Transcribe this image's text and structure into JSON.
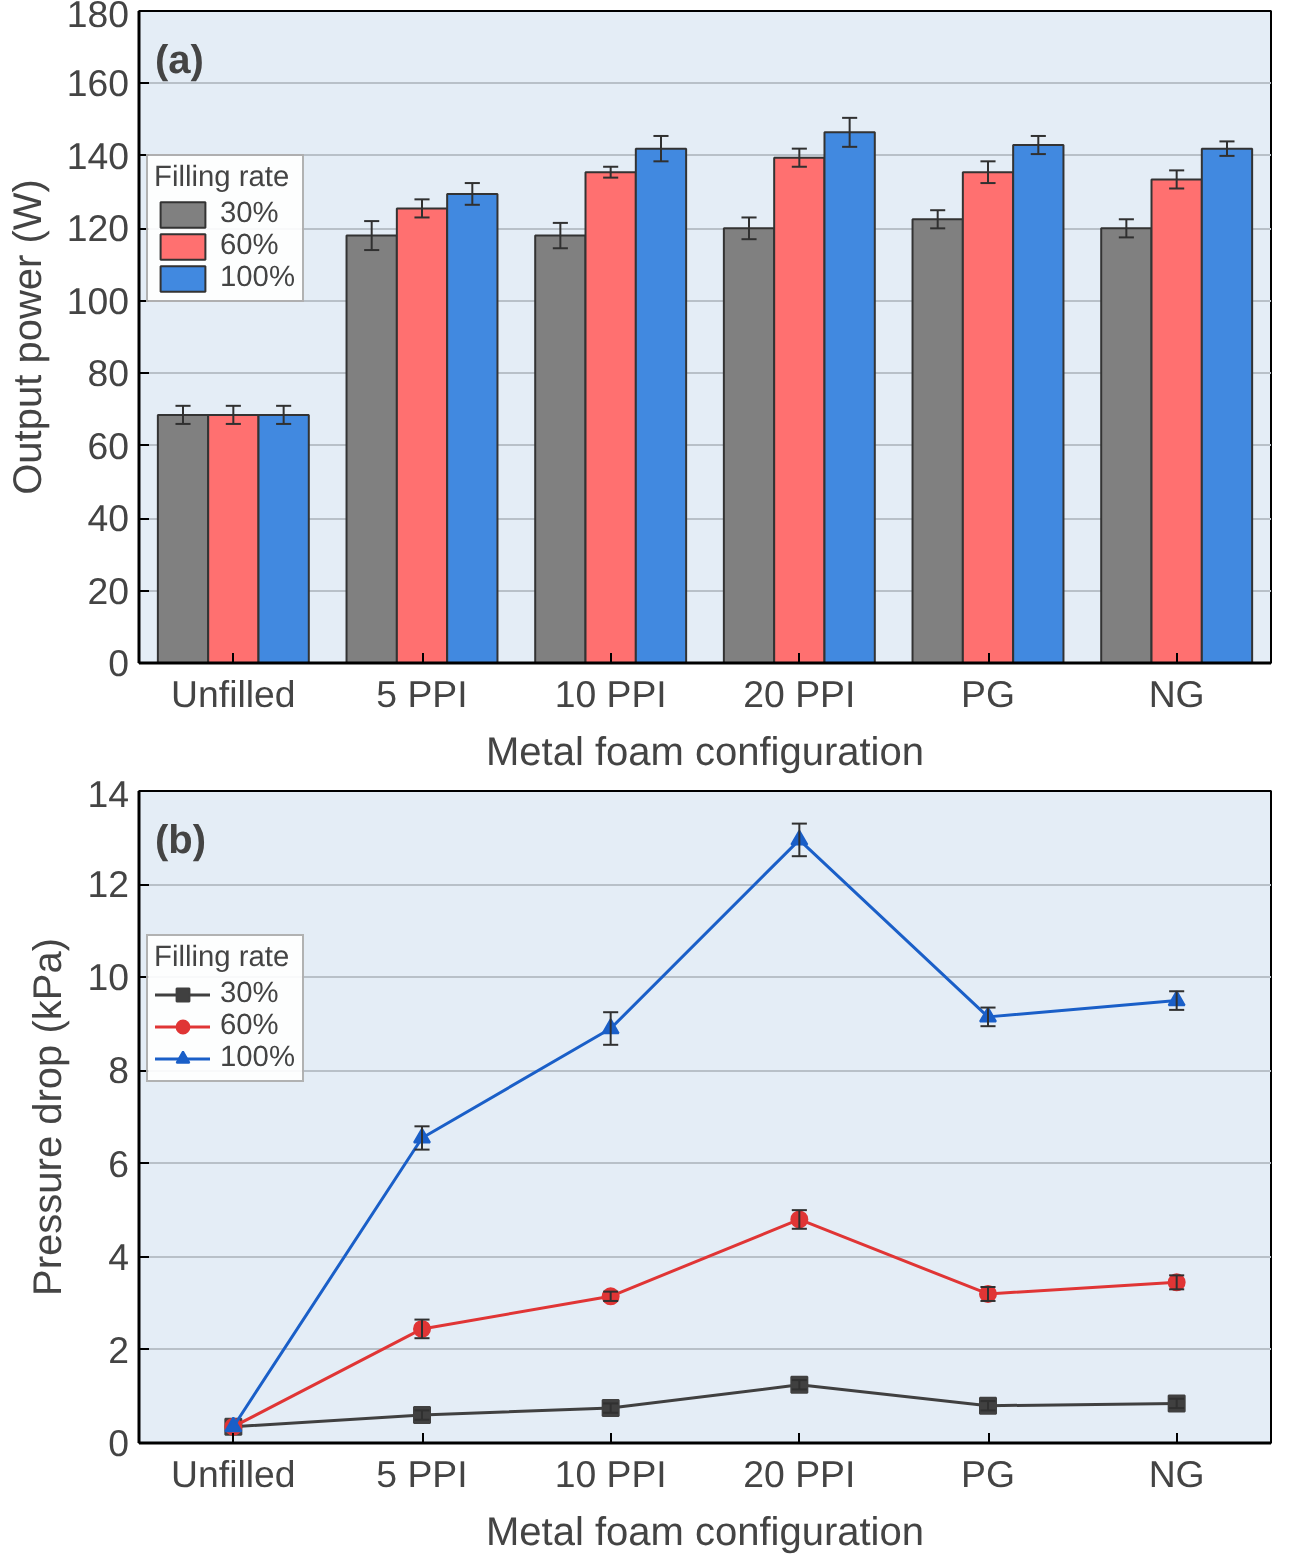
{
  "chart_data": [
    {
      "type": "bar",
      "annotations": [
        "(a)"
      ],
      "xlabel": "Metal foam configuration",
      "ylabel": "Output power (W)",
      "legend_title": "Filling rate",
      "categories": [
        "Unfilled",
        "5 PPI",
        "10 PPI",
        "20 PPI",
        "PG",
        "NG"
      ],
      "series": [
        {
          "name": "30%",
          "color": "#808080",
          "values": [
            68.5,
            118,
            118,
            120,
            122.5,
            120
          ],
          "errors": [
            2.5,
            4,
            3.5,
            3,
            2.5,
            2.5
          ]
        },
        {
          "name": "60%",
          "color": "#ff7070",
          "values": [
            68.5,
            125.5,
            135.5,
            139.5,
            135.5,
            133.5
          ],
          "errors": [
            2.5,
            2.5,
            1.5,
            2.5,
            3,
            2.5
          ]
        },
        {
          "name": "100%",
          "color": "#4189e0",
          "values": [
            68.5,
            129.5,
            142,
            146.5,
            143,
            142
          ],
          "errors": [
            2.5,
            3,
            3.5,
            4,
            2.5,
            2
          ]
        }
      ],
      "ylim": [
        0,
        180
      ],
      "yticks": [
        0,
        20,
        40,
        60,
        80,
        100,
        120,
        140,
        160,
        180
      ],
      "grid": "y",
      "legend": "top left"
    },
    {
      "type": "line",
      "annotations": [
        "(b)"
      ],
      "xlabel": "Metal foam configuration",
      "ylabel": "Pressure drop (kPa)",
      "legend_title": "Filling rate",
      "categories": [
        "Unfilled",
        "5 PPI",
        "10 PPI",
        "20 PPI",
        "PG",
        "NG"
      ],
      "series": [
        {
          "name": "30%",
          "color": "#404040",
          "marker": "square",
          "values": [
            0.35,
            0.6,
            0.75,
            1.25,
            0.8,
            0.85
          ],
          "errors": [
            null,
            0.1,
            0.1,
            0.1,
            0.1,
            0.1
          ]
        },
        {
          "name": "60%",
          "color": "#e03535",
          "marker": "circle",
          "values": [
            0.35,
            2.45,
            3.15,
            4.8,
            3.2,
            3.45
          ],
          "errors": [
            null,
            0.2,
            0.1,
            0.2,
            0.15,
            0.15
          ]
        },
        {
          "name": "100%",
          "color": "#1a5fc8",
          "marker": "triangle",
          "values": [
            0.35,
            6.55,
            8.9,
            12.95,
            9.15,
            9.5
          ],
          "errors": [
            null,
            0.25,
            0.35,
            0.35,
            0.2,
            0.2
          ]
        }
      ],
      "ylim": [
        0,
        14
      ],
      "yticks": [
        0,
        2,
        4,
        6,
        8,
        10,
        12,
        14
      ],
      "grid": "y",
      "legend": "top left"
    }
  ]
}
